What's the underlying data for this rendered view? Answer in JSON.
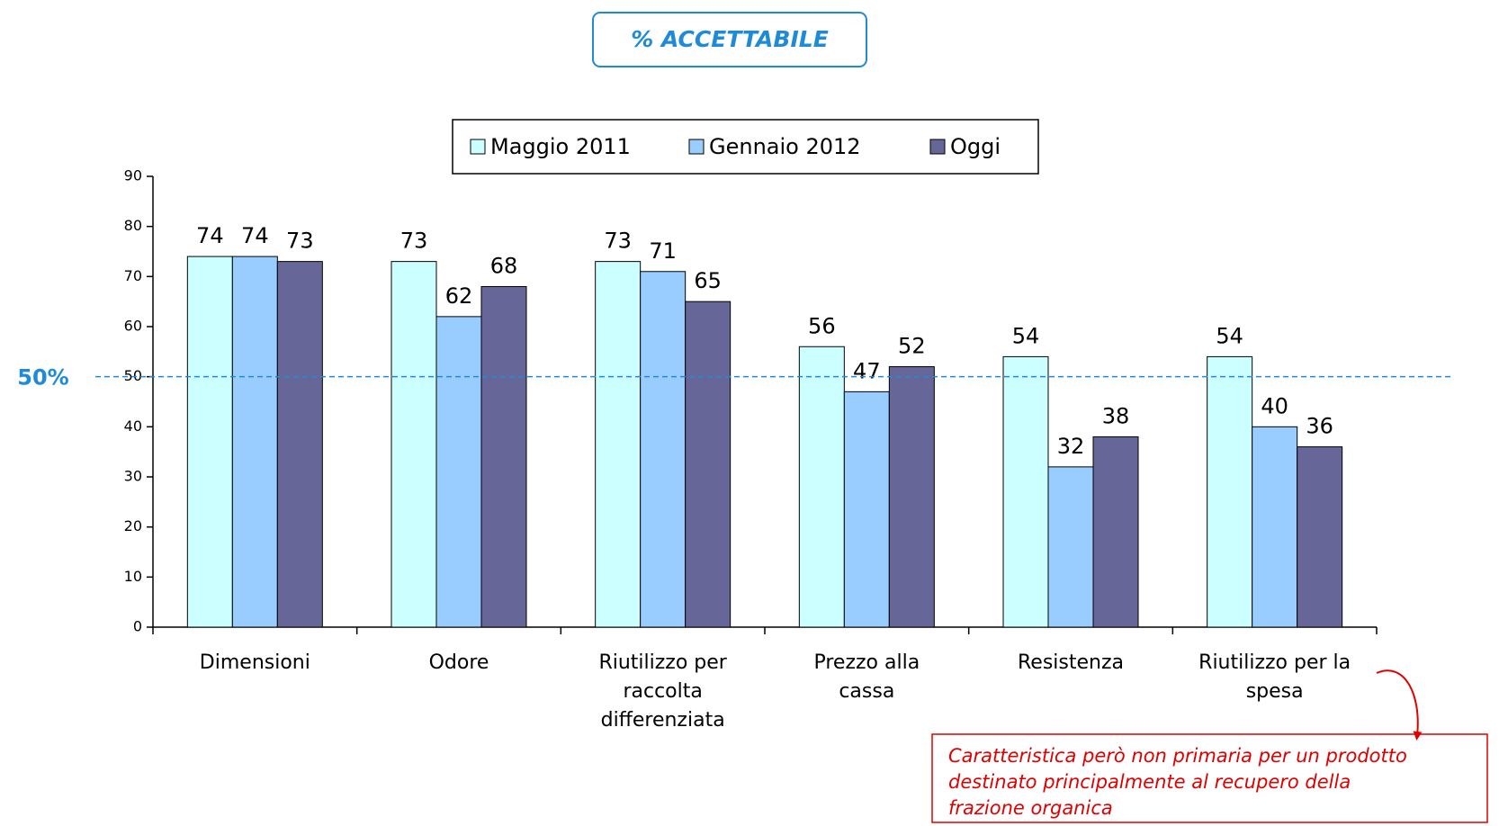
{
  "chart_data": {
    "type": "bar",
    "title": "% ACCETTABILE",
    "categories": [
      "Dimensioni",
      "Odore",
      "Riutilizzo per\nraccolta\ndifferenziata",
      "Prezzo alla\ncassa",
      "Resistenza",
      "Riutilizzo per la\nspesa"
    ],
    "series": [
      {
        "name": "Maggio 2011",
        "color": "#ccffff",
        "values": [
          74,
          73,
          73,
          56,
          54,
          54
        ]
      },
      {
        "name": "Gennaio 2012",
        "color": "#99ccff",
        "values": [
          74,
          62,
          71,
          47,
          32,
          40
        ]
      },
      {
        "name": "Oggi",
        "color": "#666699",
        "values": [
          73,
          68,
          65,
          52,
          38,
          36
        ]
      }
    ],
    "ylim": [
      0,
      90
    ],
    "yticks": [
      0,
      10,
      20,
      30,
      40,
      50,
      60,
      70,
      80,
      90
    ],
    "reference_line": {
      "value": 50,
      "label": "50%",
      "color": "#1f8ad6"
    },
    "annotation": "Caratteristica però non primaria per un prodotto\ndestinato principalmente al recupero della\nfrazione organica",
    "legend": "top"
  }
}
